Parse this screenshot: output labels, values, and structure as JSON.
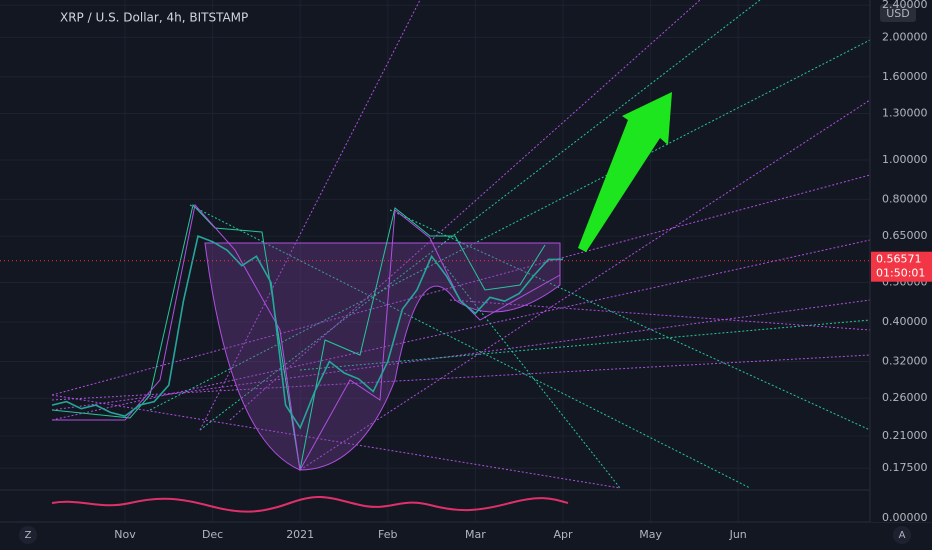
{
  "chart_data": {
    "type": "line",
    "title": "XRP / U.S. Dollar, 4h, BITSTAMP",
    "currency": "USD",
    "log_scale": true,
    "grid": true,
    "color": "#26a69a",
    "categories": [
      null,
      null,
      null,
      null,
      null,
      "Nov",
      null,
      null,
      null,
      null,
      null,
      "Dec",
      null,
      null,
      null,
      null,
      null,
      "2021",
      null,
      null,
      null,
      null,
      null,
      "Feb",
      null,
      null,
      null,
      null,
      null,
      "Mar",
      null,
      null,
      null,
      null,
      null,
      "Apr",
      null,
      null,
      null,
      null,
      null,
      "May",
      null,
      null,
      null,
      null,
      null,
      "Jun",
      null,
      null,
      null,
      null,
      null,
      null,
      null,
      null
    ],
    "values": [
      0.25,
      0.255,
      0.245,
      0.25,
      0.24,
      0.235,
      0.25,
      0.255,
      0.28,
      0.45,
      0.65,
      0.63,
      0.6,
      0.55,
      0.58,
      0.5,
      0.25,
      0.22,
      0.27,
      0.32,
      0.3,
      0.29,
      0.27,
      0.32,
      0.43,
      0.48,
      0.58,
      0.52,
      0.45,
      0.42,
      0.46,
      0.45,
      0.47,
      0.52,
      0.57,
      0.57,
      null,
      null,
      null,
      null,
      null,
      null,
      null,
      null,
      null,
      null,
      null,
      null,
      null,
      null,
      null,
      null,
      null,
      null,
      null,
      null
    ],
    "ylim": [
      0.1565,
      2.47
    ],
    "yticks": [
      {
        "value": 0.175,
        "label": "0.17500"
      },
      {
        "value": 0.21,
        "label": "0.21000"
      },
      {
        "value": 0.26,
        "label": "0.26000"
      },
      {
        "value": 0.32,
        "label": "0.32000"
      },
      {
        "value": 0.4,
        "label": "0.40000"
      },
      {
        "value": 0.5,
        "label": "0.50000"
      },
      {
        "value": 0.65,
        "label": "0.65000"
      },
      {
        "value": 0.8,
        "label": "0.80000"
      },
      {
        "value": 1.0,
        "label": "1.00000"
      },
      {
        "value": 1.3,
        "label": "1.30000"
      },
      {
        "value": 1.6,
        "label": "1.60000"
      },
      {
        "value": 2.0,
        "label": "2.00000"
      },
      {
        "value": 2.4,
        "label": "2.40000"
      }
    ],
    "last_price": {
      "value": 0.56571,
      "label": "0.56571",
      "countdown": "01:50:01",
      "color": "#f23645"
    },
    "indicator_axis_label": "0.00000",
    "buttons": {
      "left": "Z",
      "right": "A"
    }
  }
}
